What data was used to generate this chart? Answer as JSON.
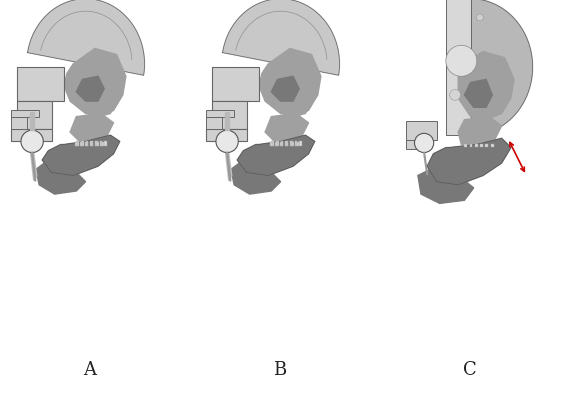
{
  "background_color": "#ffffff",
  "labels": [
    "A",
    "B",
    "C"
  ],
  "label_fontsize": 13,
  "label_color": "#222222",
  "arrow_color": "#cc0000",
  "gray_skull_light": "#c8c8c8",
  "gray_skull_mid": "#a0a0a0",
  "gray_skull_dark": "#787878",
  "gray_box": "#d0d0d0",
  "gray_box_dark": "#b8b8b8",
  "white": "#ffffff"
}
